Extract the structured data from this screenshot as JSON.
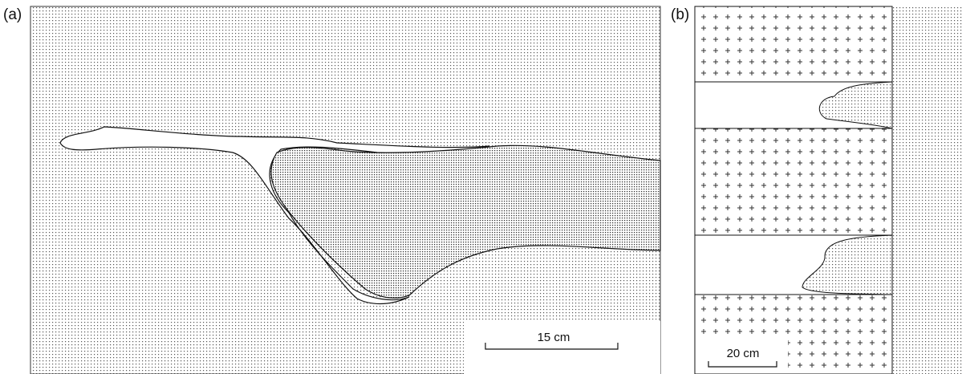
{
  "panels": [
    {
      "label": "(a)",
      "scale_bar": "15 cm"
    },
    {
      "label": "(b)",
      "scale_bar": "20 cm"
    }
  ]
}
